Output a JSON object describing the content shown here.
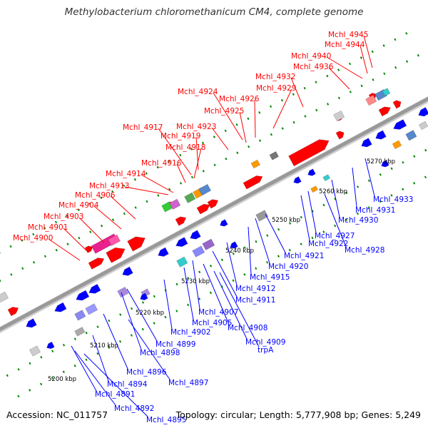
{
  "title": "Methylobacterium chloromethanicum CM4, complete genome",
  "footer": {
    "accession": "Accession: NC_011757",
    "topology": "Topology: circular; Length: 5,777,908 bp; Genes: 5,249"
  },
  "colors": {
    "forward": "#ff0000",
    "reverse": "#0000ff",
    "backbone": "#999999",
    "tick": "#008800"
  },
  "scale_labels": [
    "5200 kbp",
    "5210 kbp",
    "5220 kbp",
    "5230 kbp",
    "5240 kbp",
    "5250 kbp",
    "5260 kbp",
    "5270 kbp"
  ],
  "top_labels": [
    "Mchl_4945",
    "Mchl_4944",
    "Mchl_4940",
    "Mchl_4936",
    "Mchl_4932",
    "Mchl_4929",
    "Mchl_4924",
    "Mchl_4926",
    "Mchl_4925",
    "Mchl_4923",
    "Mchl_4917",
    "Mchl_4919",
    "Mchl_4918",
    "Mchl_4916",
    "Mchl_4914",
    "Mchl_4913",
    "Mchl_4906",
    "Mchl_4904",
    "Mchl_4903",
    "Mchl_4901",
    "Mchl_4900"
  ],
  "bottom_labels": [
    "Mchl_4933",
    "Mchl_4931",
    "Mchl_4930",
    "Mchl_4927",
    "Mchl_4928",
    "Mchl_4922",
    "Mchl_4921",
    "Mchl_4920",
    "Mchl_4915",
    "Mchl_4912",
    "Mchl_4911",
    "Mchl_4907",
    "Mchl_4908",
    "Mchl_4905",
    "Mchl_4909",
    "trpA",
    "Mchl_4902",
    "Mchl_4899",
    "Mchl_4898",
    "Mchl_4896",
    "Mchl_4897",
    "Mchl_4894",
    "Mchl_4891",
    "Mchl_4892",
    "Mchl_4895"
  ]
}
